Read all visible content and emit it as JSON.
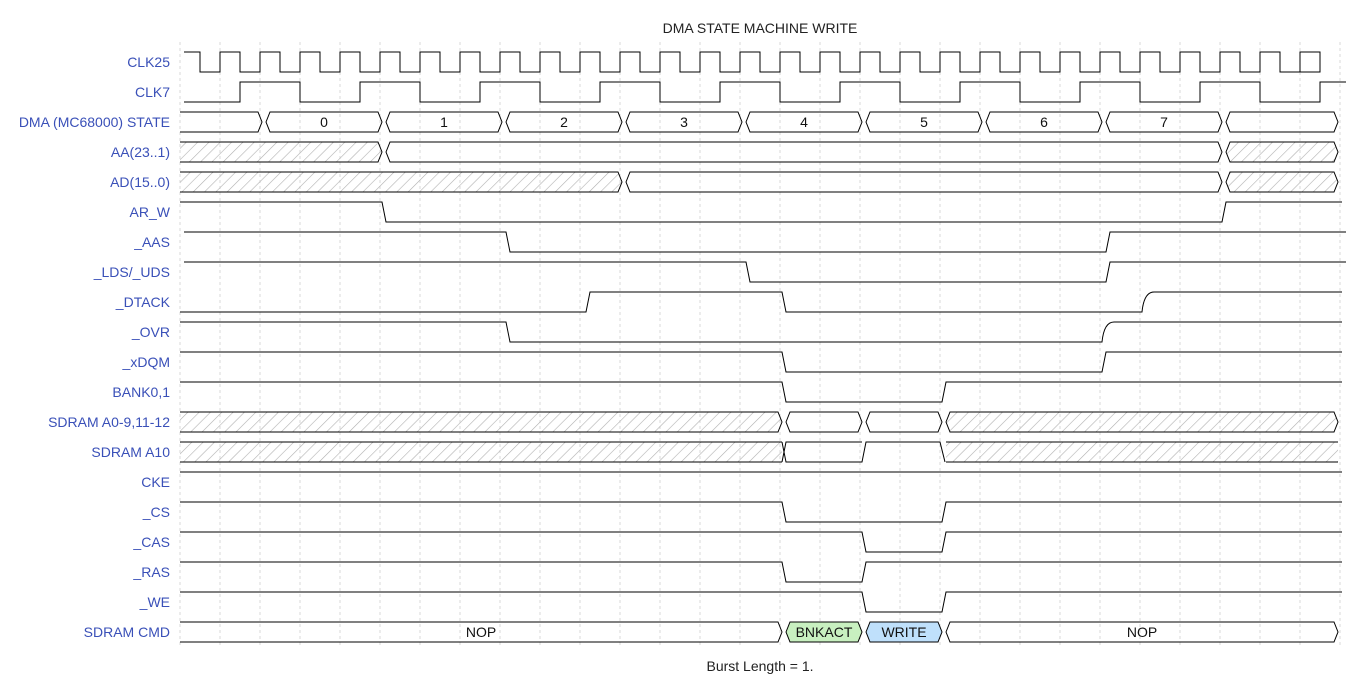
{
  "title": "DMA STATE MACHINE WRITE",
  "footnote": "Burst Length = 1.",
  "colors": {
    "label": "#3a50b8",
    "line": "#000000",
    "grid": "#d9d9d9",
    "hatch": "#b0b0b0",
    "bnkact_fill": "#c8f0c0",
    "write_fill": "#bfe0fb"
  },
  "signals": [
    {
      "name": "CLK25",
      "type": "clock",
      "start": "high",
      "half_period": 0.5
    },
    {
      "name": "CLK7",
      "type": "clock",
      "start": "low",
      "half_period": 1.5
    },
    {
      "name": "DMA (MC68000) STATE",
      "type": "bus",
      "segments": [
        {
          "from": 0,
          "to": 2.1,
          "label": ""
        },
        {
          "from": 2.1,
          "to": 5.1,
          "label": "0"
        },
        {
          "from": 5.1,
          "to": 8.1,
          "label": "1"
        },
        {
          "from": 8.1,
          "to": 11.1,
          "label": "2"
        },
        {
          "from": 11.1,
          "to": 14.1,
          "label": "3"
        },
        {
          "from": 14.1,
          "to": 17.1,
          "label": "4"
        },
        {
          "from": 17.1,
          "to": 20.1,
          "label": "5"
        },
        {
          "from": 20.1,
          "to": 23.1,
          "label": "6"
        },
        {
          "from": 23.1,
          "to": 26.1,
          "label": "7"
        },
        {
          "from": 26.1,
          "to": 29,
          "label": ""
        }
      ]
    },
    {
      "name": "AA(23..1)",
      "type": "bus",
      "segments": [
        {
          "from": 0,
          "to": 5.1,
          "hatch": true
        },
        {
          "from": 5.1,
          "to": 26.1,
          "label": ""
        },
        {
          "from": 26.1,
          "to": 29,
          "hatch": true
        }
      ]
    },
    {
      "name": "AD(15..0)",
      "type": "bus",
      "segments": [
        {
          "from": 0,
          "to": 11.1,
          "hatch": true
        },
        {
          "from": 11.1,
          "to": 26.1,
          "label": ""
        },
        {
          "from": 26.1,
          "to": 29,
          "hatch": true
        }
      ]
    },
    {
      "name": "AR_W",
      "type": "wire",
      "initial": 1,
      "transitions": [
        {
          "at": 5.1,
          "to": 0
        },
        {
          "at": 26.1,
          "to": 1
        }
      ]
    },
    {
      "name": "_AAS",
      "type": "wire",
      "initial": 1,
      "transitions": [
        {
          "at": 8.2,
          "to": 0
        },
        {
          "at": 23.2,
          "to": 1
        }
      ]
    },
    {
      "name": "_LDS/_UDS",
      "type": "wire",
      "initial": 1,
      "transitions": [
        {
          "at": 14.2,
          "to": 0
        },
        {
          "at": 23.2,
          "to": 1
        }
      ]
    },
    {
      "name": "_DTACK",
      "type": "wire",
      "initial": 0,
      "transitions": [
        {
          "at": 10.2,
          "to": 1
        },
        {
          "at": 15.1,
          "to": 0
        },
        {
          "at": 24.1,
          "to": 1,
          "slow": true
        }
      ]
    },
    {
      "name": "_OVR",
      "type": "wire",
      "initial": 1,
      "transitions": [
        {
          "at": 8.2,
          "to": 0
        },
        {
          "at": 23.1,
          "to": 1,
          "slow": true
        }
      ]
    },
    {
      "name": "_xDQM",
      "type": "wire",
      "initial": 1,
      "transitions": [
        {
          "at": 15.1,
          "to": 0
        },
        {
          "at": 23.1,
          "to": 1
        }
      ]
    },
    {
      "name": "BANK0,1",
      "type": "wire",
      "initial": 1,
      "transitions": [
        {
          "at": 15.1,
          "to": 0
        },
        {
          "at": 19.1,
          "to": 1
        }
      ]
    },
    {
      "name": "SDRAM A0-9,11-12",
      "type": "bus",
      "segments": [
        {
          "from": 0,
          "to": 15.1,
          "hatch": true
        },
        {
          "from": 15.1,
          "to": 17.1,
          "label": ""
        },
        {
          "from": 17.1,
          "to": 19.1,
          "label": ""
        },
        {
          "from": 19.1,
          "to": 29,
          "hatch": true
        }
      ]
    },
    {
      "name": "SDRAM A10",
      "type": "wire_mixed",
      "segments": [
        {
          "from": 0,
          "to": 15.1,
          "hatch": true
        },
        {
          "from": 15.1,
          "to": 17.1,
          "level": 0
        },
        {
          "from": 17.1,
          "to": 19.1,
          "level": 1
        },
        {
          "from": 19.1,
          "to": 29,
          "hatch": true
        }
      ]
    },
    {
      "name": "CKE",
      "type": "wire",
      "initial": 1,
      "transitions": []
    },
    {
      "name": "_CS",
      "type": "wire",
      "initial": 1,
      "transitions": [
        {
          "at": 15.1,
          "to": 0
        },
        {
          "at": 19.1,
          "to": 1
        }
      ]
    },
    {
      "name": "_CAS",
      "type": "wire",
      "initial": 1,
      "transitions": [
        {
          "at": 17.1,
          "to": 0
        },
        {
          "at": 19.1,
          "to": 1
        }
      ]
    },
    {
      "name": "_RAS",
      "type": "wire",
      "initial": 1,
      "transitions": [
        {
          "at": 15.1,
          "to": 0
        },
        {
          "at": 17.1,
          "to": 1
        }
      ]
    },
    {
      "name": "_WE",
      "type": "wire",
      "initial": 1,
      "transitions": [
        {
          "at": 17.1,
          "to": 0
        },
        {
          "at": 19.1,
          "to": 1
        }
      ]
    },
    {
      "name": "SDRAM CMD",
      "type": "bus",
      "segments": [
        {
          "from": 0,
          "to": 15.1,
          "label": "NOP"
        },
        {
          "from": 15.1,
          "to": 17.1,
          "label": "BNKACT",
          "fill": "bnkact"
        },
        {
          "from": 17.1,
          "to": 19.1,
          "label": "WRITE",
          "fill": "write"
        },
        {
          "from": 19.1,
          "to": 29,
          "label": "NOP"
        }
      ]
    }
  ]
}
